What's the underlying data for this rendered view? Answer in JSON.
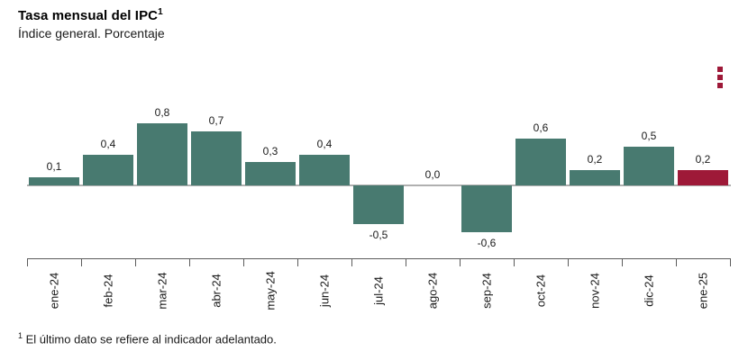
{
  "header": {
    "title": "Tasa mensual del IPC",
    "title_superscript": "1",
    "subtitle": "Índice general. Porcentaje"
  },
  "menu": {
    "icon": "kebab-menu",
    "color": "#9e1938"
  },
  "chart_data": {
    "type": "bar",
    "title": "Tasa mensual del IPC",
    "subtitle": "Índice general. Porcentaje",
    "categories": [
      "ene-24",
      "feb-24",
      "mar-24",
      "abr-24",
      "may-24",
      "jun-24",
      "jul-24",
      "ago-24",
      "sep-24",
      "oct-24",
      "nov-24",
      "dic-24",
      "ene-25"
    ],
    "values": [
      0.1,
      0.4,
      0.8,
      0.7,
      0.3,
      0.4,
      -0.5,
      0.0,
      -0.6,
      0.6,
      0.2,
      0.5,
      0.2
    ],
    "labels": [
      "0,1",
      "0,4",
      "0,8",
      "0,7",
      "0,3",
      "0,4",
      "-0,5",
      "0,0",
      "-0,6",
      "0,6",
      "0,2",
      "0,5",
      "0,2"
    ],
    "bar_colors": {
      "default": "#487a70",
      "highlight": "#9e1938"
    },
    "highlight_index": 12,
    "ylim": [
      -0.7,
      0.9
    ],
    "baseline": 0,
    "grid": false,
    "legend": false,
    "xlabel": "",
    "ylabel": ""
  },
  "footnote": {
    "superscript": "1",
    "text": "El último dato se refiere al indicador adelantado."
  }
}
